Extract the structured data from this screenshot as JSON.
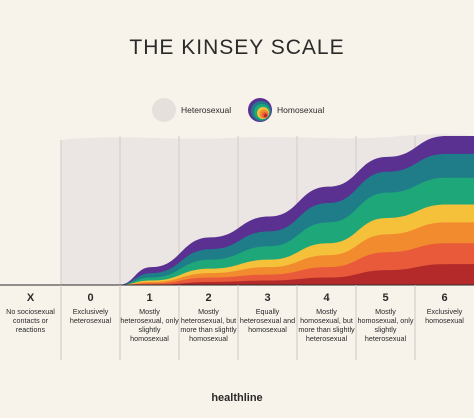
{
  "chart_data": {
    "type": "area",
    "title": "THE KINSEY SCALE",
    "legend": [
      {
        "label": "Heterosexual",
        "color": "#e6e0dc"
      },
      {
        "label": "Homosexual",
        "color": "#5a3090"
      }
    ],
    "categories": [
      "X",
      "0",
      "1",
      "2",
      "3",
      "4",
      "5",
      "6"
    ],
    "category_descriptions": [
      "No sociosexual contacts or reactions",
      "Exclusively heterosexual",
      "Mostly heterosexual, only slightly homosexual",
      "Mostly heterosexual, but more than slightly homosexual",
      "Equally heterosexual and homosexual",
      "Mostly homosexual, but more than slightly heterosexual",
      "Mostly homosexual, only slightly heterosexual",
      "Exclusively homosexual"
    ],
    "x": [
      0,
      1,
      2,
      3,
      4,
      5,
      6
    ],
    "series": [
      {
        "color": "#5a3090",
        "values": [
          0,
          0.12,
          0.32,
          0.46,
          0.66,
          0.86,
          1.0
        ]
      },
      {
        "color": "#1f7d8a",
        "values": [
          0,
          0.08,
          0.24,
          0.36,
          0.55,
          0.76,
          0.88
        ]
      },
      {
        "color": "#1ea87a",
        "values": [
          0,
          0.05,
          0.17,
          0.26,
          0.42,
          0.62,
          0.72
        ]
      },
      {
        "color": "#f5c03a",
        "values": [
          0,
          0.03,
          0.11,
          0.17,
          0.28,
          0.45,
          0.54
        ]
      },
      {
        "color": "#f28a2e",
        "values": [
          0,
          0.02,
          0.08,
          0.12,
          0.2,
          0.34,
          0.42
        ]
      },
      {
        "color": "#e85a3a",
        "values": [
          0,
          0.01,
          0.05,
          0.07,
          0.12,
          0.22,
          0.28
        ]
      },
      {
        "color": "#b42a2a",
        "values": [
          0,
          0,
          0.02,
          0.03,
          0.05,
          0.1,
          0.14
        ]
      }
    ],
    "background_color": "#ebe5e3"
  },
  "brand": "healthline"
}
